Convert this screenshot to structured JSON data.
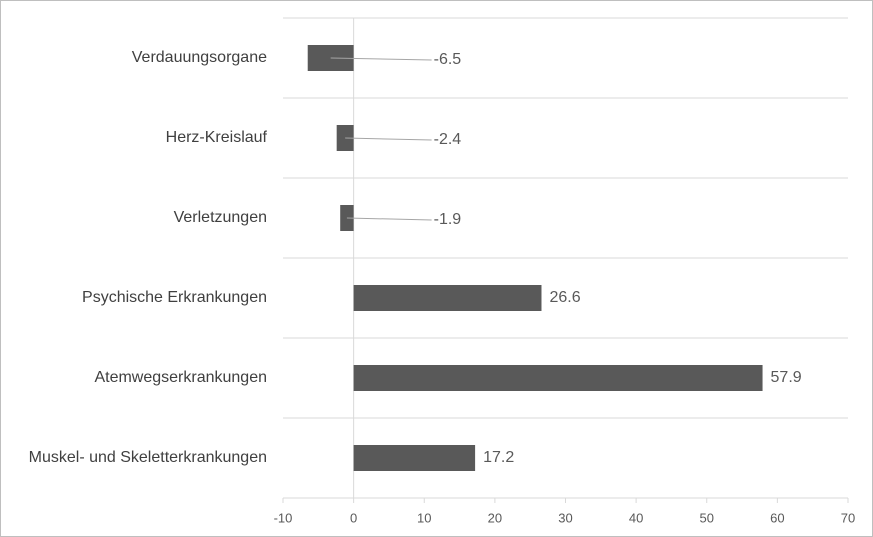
{
  "chart_data": {
    "type": "bar",
    "orientation": "horizontal",
    "categories": [
      "Verdauungsorgane",
      "Herz-Kreislauf",
      "Verletzungen",
      "Psychische Erkrankungen",
      "Atemwegserkrankungen",
      "Muskel- und Skeletterkrankungen"
    ],
    "values": [
      -6.5,
      -2.4,
      -1.9,
      26.6,
      57.9,
      17.2
    ],
    "color": "#595959",
    "xlim": [
      -10,
      70
    ],
    "xticks": [
      -10,
      0,
      10,
      20,
      30,
      40,
      50,
      60,
      70
    ]
  }
}
